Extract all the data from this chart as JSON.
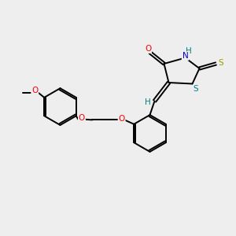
{
  "bg_color": "#eeeeee",
  "bond_color": "#000000",
  "atom_colors": {
    "O": "#ff0000",
    "N": "#0000cc",
    "S_thioxo": "#999900",
    "S_ring": "#008080",
    "H": "#008080",
    "C": "#000000"
  },
  "figsize": [
    3.0,
    3.0
  ],
  "dpi": 100
}
